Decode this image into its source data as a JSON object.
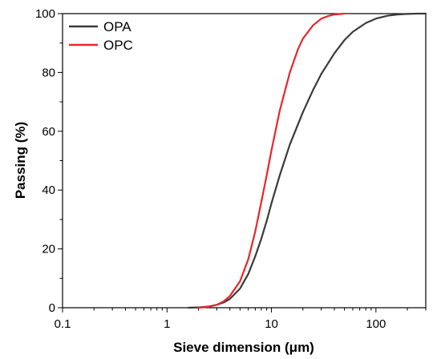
{
  "chart_data": {
    "type": "line",
    "xlabel": "Sieve dimension (μm)",
    "ylabel": "Passing (%)",
    "xscale": "log",
    "xlim": [
      0.1,
      300
    ],
    "ylim": [
      0,
      100
    ],
    "x_ticks": [
      0.1,
      1,
      10,
      100
    ],
    "x_tick_labels": [
      "0.1",
      "1",
      "10",
      "100"
    ],
    "y_ticks": [
      0,
      20,
      40,
      60,
      80,
      100
    ],
    "y_tick_labels": [
      "0",
      "20",
      "40",
      "60",
      "80",
      "100"
    ],
    "grid": false,
    "legend": "top-left",
    "series": [
      {
        "name": "OPA",
        "color": "#3a3a3a",
        "x": [
          1.6,
          2.0,
          2.5,
          3.0,
          3.5,
          4.0,
          5.0,
          6.0,
          7.0,
          8.0,
          9.0,
          10.0,
          12.0,
          15.0,
          20.0,
          25.0,
          30.0,
          40.0,
          50.0,
          60.0,
          80.0,
          100.0,
          130.0,
          160.0,
          200.0,
          250.0,
          300.0
        ],
        "y": [
          0,
          0.1,
          0.4,
          1.0,
          1.8,
          3.0,
          6.5,
          11.5,
          17.5,
          23.5,
          29.5,
          35.5,
          45.0,
          55.5,
          66.5,
          74.0,
          79.5,
          86.5,
          91.0,
          93.8,
          96.8,
          98.3,
          99.3,
          99.7,
          99.9,
          100,
          100
        ]
      },
      {
        "name": "OPC",
        "color": "#e8262b",
        "x": [
          2.0,
          2.5,
          3.0,
          3.5,
          4.0,
          5.0,
          6.0,
          7.0,
          8.0,
          9.0,
          10.0,
          12.0,
          15.0,
          18.0,
          20.0,
          25.0,
          30.0,
          35.0,
          40.0,
          50.0
        ],
        "y": [
          0,
          0.3,
          1.0,
          2.2,
          4.0,
          9.0,
          16.5,
          26.0,
          36.0,
          45.0,
          53.5,
          67.0,
          80.0,
          88.0,
          91.5,
          96.0,
          98.3,
          99.2,
          99.7,
          100
        ]
      }
    ]
  }
}
